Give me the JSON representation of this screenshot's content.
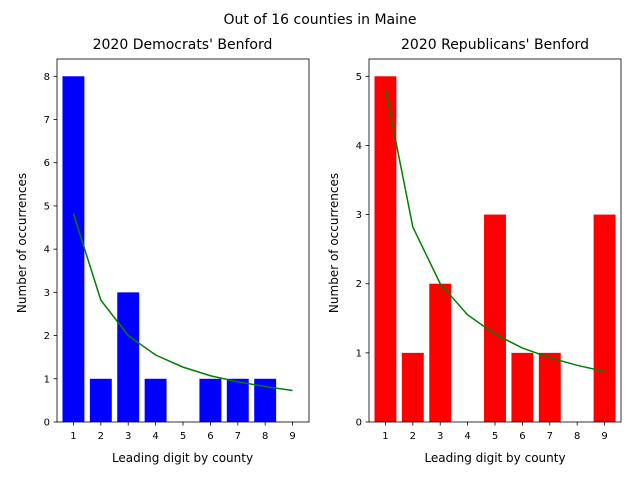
{
  "figure": {
    "suptitle": "Out of 16 counties in Maine"
  },
  "chart_data": [
    {
      "type": "bar",
      "title": "2020 Democrats' Benford",
      "xlabel": "Leading digit by county",
      "ylabel": "Number of occurrences",
      "categories": [
        "1",
        "2",
        "3",
        "4",
        "5",
        "6",
        "7",
        "8",
        "9"
      ],
      "values": [
        8,
        1,
        3,
        1,
        0,
        1,
        1,
        1,
        0
      ],
      "bar_color": "#0000ff",
      "expected": [
        4.82,
        2.82,
        2.0,
        1.55,
        1.27,
        1.07,
        0.93,
        0.82,
        0.73
      ],
      "expected_color": "#008000",
      "ylim": [
        0,
        8.4
      ],
      "yticks": [
        0,
        1,
        2,
        3,
        4,
        5,
        6,
        7,
        8
      ]
    },
    {
      "type": "bar",
      "title": "2020 Republicans' Benford",
      "xlabel": "Leading digit by county",
      "ylabel": "Number of occurrences",
      "categories": [
        "1",
        "2",
        "3",
        "4",
        "5",
        "6",
        "7",
        "8",
        "9"
      ],
      "values": [
        5,
        1,
        2,
        0,
        3,
        1,
        1,
        0,
        3
      ],
      "bar_color": "#ff0000",
      "expected": [
        4.82,
        2.82,
        2.0,
        1.55,
        1.27,
        1.07,
        0.93,
        0.82,
        0.73
      ],
      "expected_color": "#008000",
      "ylim": [
        0,
        5.25
      ],
      "yticks": [
        0,
        1,
        2,
        3,
        4,
        5
      ]
    }
  ]
}
